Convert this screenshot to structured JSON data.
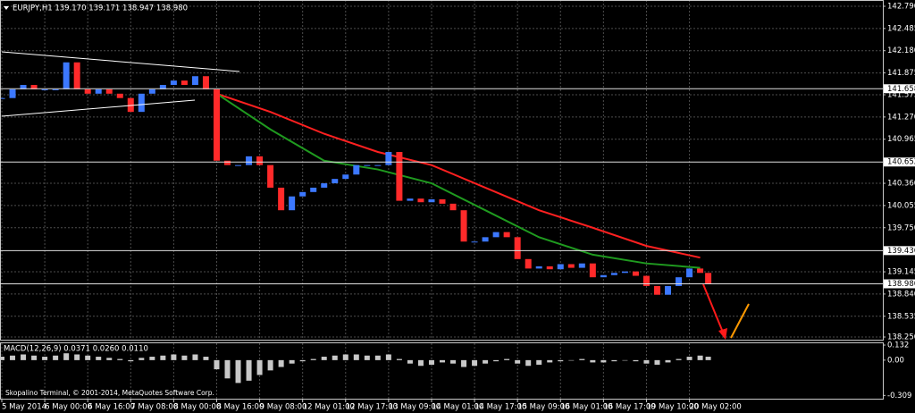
{
  "chart_data": {
    "type": "candlestick",
    "title": "EURJPY,H1  139.170 139.171 138.947 138.980",
    "footer": "Skopalino Terminal, © 2001-2014, MetaQuotes Software Corp.",
    "up_color": "#3c78ff",
    "down_color": "#ff2a2a",
    "grid": true,
    "x": [
      0,
      4,
      8,
      12,
      16,
      20,
      24,
      28,
      32,
      36,
      40,
      44,
      48,
      52,
      56,
      60,
      64,
      68,
      72,
      76,
      80,
      84,
      88,
      92,
      96,
      100,
      104,
      108,
      112,
      116,
      120,
      124,
      128,
      132,
      136,
      140,
      144,
      148,
      152,
      156,
      160,
      164,
      168,
      172,
      176,
      180,
      184,
      188,
      192,
      196,
      200,
      204,
      208,
      212,
      216,
      220,
      224,
      228,
      232,
      236,
      240,
      244,
      248,
      252,
      256,
      260,
      263
    ],
    "values": [
      141.53,
      141.65,
      141.71,
      141.65,
      141.65,
      141.65,
      142.02,
      141.65,
      141.59,
      141.65,
      141.59,
      141.53,
      141.34,
      141.59,
      141.65,
      141.71,
      141.77,
      141.71,
      141.83,
      141.65,
      140.67,
      140.61,
      140.61,
      140.73,
      140.61,
      140.3,
      139.99,
      140.18,
      140.24,
      140.3,
      140.36,
      140.42,
      140.48,
      140.61,
      140.61,
      140.61,
      140.79,
      140.12,
      140.15,
      140.1,
      140.14,
      140.08,
      139.99,
      139.56,
      139.56,
      139.62,
      139.69,
      139.62,
      139.32,
      139.19,
      139.22,
      139.18,
      139.25,
      139.2,
      139.26,
      139.07,
      139.1,
      139.13,
      139.15,
      139.09,
      138.95,
      138.83,
      138.95,
      139.07,
      139.19,
      139.13,
      138.98
    ],
    "xlim": [
      0,
      328
    ],
    "xticks": [
      {
        "value": 0,
        "label": "5 May 2014"
      },
      {
        "value": 16,
        "label": "6 May 00:00"
      },
      {
        "value": 32,
        "label": "6 May 16:00"
      },
      {
        "value": 48,
        "label": "7 May 08:00"
      },
      {
        "value": 64,
        "label": "8 May 00:00"
      },
      {
        "value": 80,
        "label": "8 May 16:00"
      },
      {
        "value": 96,
        "label": "9 May 08:00"
      },
      {
        "value": 112,
        "label": "12 May 01:00"
      },
      {
        "value": 128,
        "label": "12 May 17:00"
      },
      {
        "value": 144,
        "label": "13 May 09:00"
      },
      {
        "value": 160,
        "label": "14 May 01:00"
      },
      {
        "value": 176,
        "label": "14 May 17:00"
      },
      {
        "value": 192,
        "label": "15 May 09:00"
      },
      {
        "value": 208,
        "label": "16 May 01:00"
      },
      {
        "value": 224,
        "label": "16 May 17:00"
      },
      {
        "value": 240,
        "label": "19 May 10:00"
      },
      {
        "value": 256,
        "label": "20 May 02:00"
      }
    ],
    "ylim": [
      138.25,
      142.79
    ],
    "yticks": [
      {
        "value": 142.79,
        "label": "142.790"
      },
      {
        "value": 142.485,
        "label": "142.485"
      },
      {
        "value": 142.18,
        "label": "142.180"
      },
      {
        "value": 141.875,
        "label": "141.875"
      },
      {
        "value": 141.575,
        "label": "141.575"
      },
      {
        "value": 141.27,
        "label": "141.270"
      },
      {
        "value": 140.965,
        "label": "140.965"
      },
      {
        "value": 140.36,
        "label": "140.360"
      },
      {
        "value": 140.055,
        "label": "140.055"
      },
      {
        "value": 139.75,
        "label": "139.750"
      },
      {
        "value": 139.145,
        "label": "139.145"
      },
      {
        "value": 138.84,
        "label": "138.840"
      },
      {
        "value": 138.535,
        "label": "138.535"
      },
      {
        "value": 138.25,
        "label": "138.250"
      }
    ],
    "levels": [
      {
        "value": 141.658,
        "label": "141.658"
      },
      {
        "value": 140.652,
        "label": "140.652"
      },
      {
        "value": 139.436,
        "label": "139.436"
      },
      {
        "value": 138.98,
        "label": "138.980"
      }
    ],
    "moving_averages": [
      {
        "color": "#ff2020",
        "x": [
          80,
          100,
          120,
          140,
          160,
          180,
          200,
          220,
          240,
          260
        ],
        "values": [
          141.59,
          141.34,
          141.04,
          140.79,
          140.61,
          140.3,
          139.99,
          139.75,
          139.5,
          139.34
        ]
      },
      {
        "color": "#1f9a1f",
        "x": [
          80,
          100,
          120,
          140,
          160,
          180,
          200,
          220,
          240,
          260
        ],
        "values": [
          141.59,
          141.1,
          140.67,
          140.55,
          140.36,
          139.99,
          139.62,
          139.38,
          139.26,
          139.2
        ]
      }
    ],
    "macd": {
      "title": "MACD(12,26,9) 0.0371 0.0260 0.0110",
      "color": "#c8c8c8",
      "values": [
        0.03,
        0.04,
        0.05,
        0.04,
        0.03,
        0.04,
        0.06,
        0.05,
        0.04,
        0.03,
        0.02,
        0.01,
        -0.01,
        0.02,
        0.03,
        0.04,
        0.05,
        0.04,
        0.05,
        0.03,
        -0.08,
        -0.16,
        -0.2,
        -0.18,
        -0.13,
        -0.09,
        -0.06,
        -0.03,
        -0.01,
        0.01,
        0.03,
        0.04,
        0.05,
        0.05,
        0.04,
        0.04,
        0.05,
        0.01,
        -0.03,
        -0.05,
        -0.04,
        -0.02,
        -0.03,
        -0.06,
        -0.05,
        -0.03,
        -0.01,
        0.01,
        -0.03,
        -0.05,
        -0.04,
        -0.02,
        -0.01,
        0.0,
        0.01,
        -0.02,
        -0.02,
        -0.01,
        0.0,
        -0.01,
        -0.03,
        -0.04,
        -0.02,
        0.01,
        0.03,
        0.04,
        0.03
      ],
      "ylim": [
        -0.33,
        0.14
      ],
      "yticks": [
        {
          "value": 0.132,
          "label": "0.132"
        },
        {
          "value": 0,
          "label": "0.00"
        },
        {
          "value": -0.309,
          "label": "-0.309"
        }
      ]
    }
  }
}
